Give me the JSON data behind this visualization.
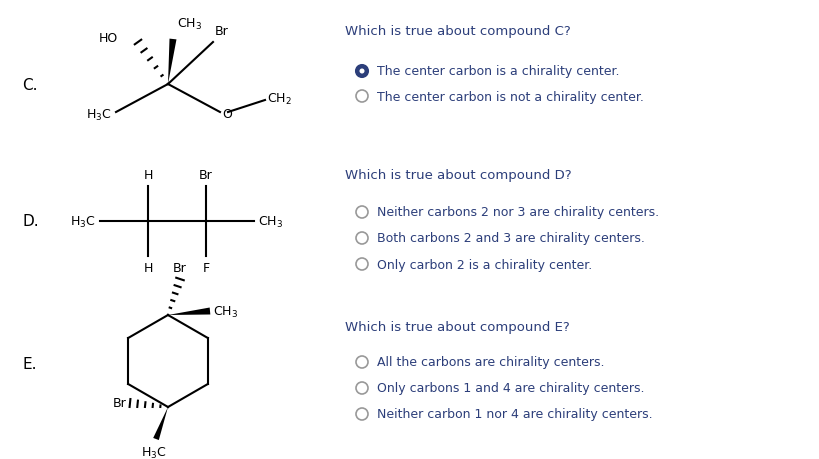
{
  "background_color": "#ffffff",
  "question_color": "#2c3e7a",
  "answer_color": "#2c3e7a",
  "sections": [
    {
      "label": "C.",
      "question": "Which is true about compound C?",
      "answers": [
        "The center carbon is a chirality center.",
        "The center carbon is not a chirality center."
      ],
      "selected": 0
    },
    {
      "label": "D.",
      "question": "Which is true about compound D?",
      "answers": [
        "Neither carbons 2 nor 3 are chirality centers.",
        "Both carbons 2 and 3 are chirality centers.",
        "Only carbon 2 is a chirality center."
      ],
      "selected": -1
    },
    {
      "label": "E.",
      "question": "Which is true about compound E?",
      "answers": [
        "All the carbons are chirality centers.",
        "Only carbons 1 and 4 are chirality centers.",
        "Neither carbon 1 nor 4 are chirality centers."
      ],
      "selected": -1
    }
  ]
}
